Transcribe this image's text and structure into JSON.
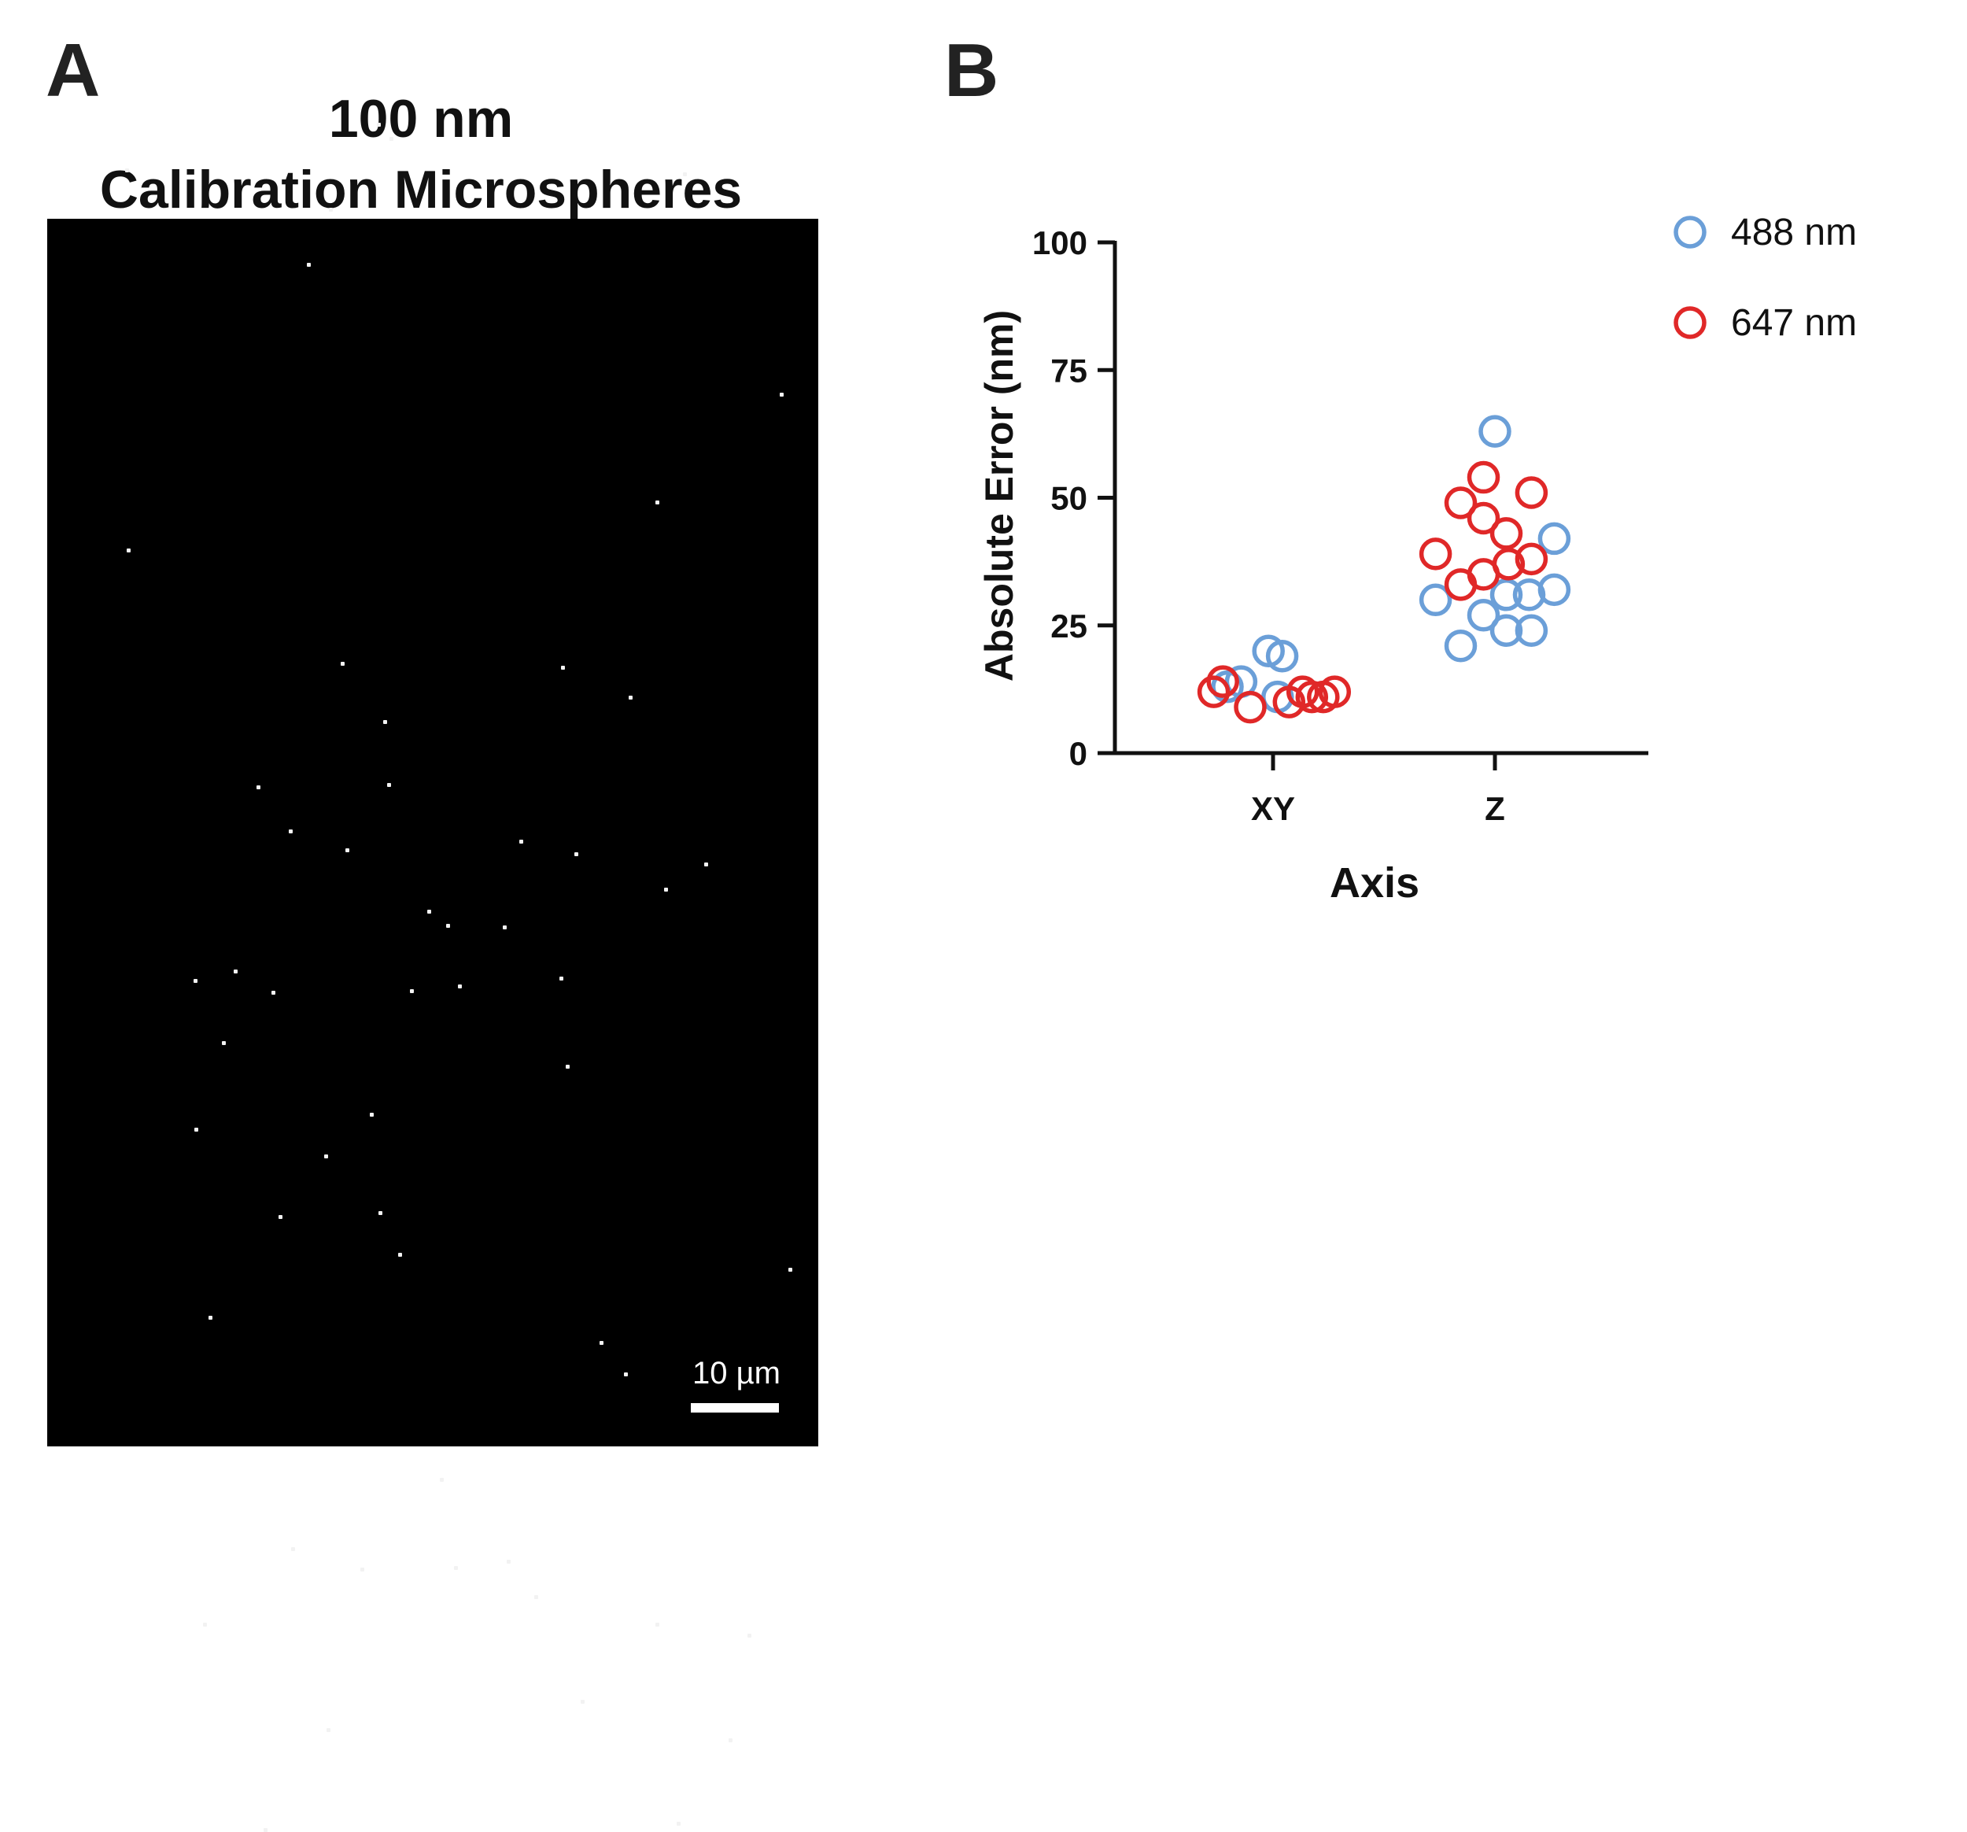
{
  "panel_a": {
    "letter": "A",
    "title_line1": "100 nm",
    "title_line2": "Calibration Microspheres",
    "scale_bar_label": "10 µm"
  },
  "panel_b": {
    "letter": "B"
  },
  "colors": {
    "series_488": "#6b9fd8",
    "series_647": "#e02828",
    "axis": "#111111",
    "image_background": "#000000"
  },
  "chart_data": {
    "type": "scatter",
    "title": "",
    "xlabel": "Axis",
    "ylabel": "Absolute  Error (nm)",
    "categories": [
      "XY",
      "Z"
    ],
    "ylim": [
      0,
      100
    ],
    "yticks": [
      0,
      25,
      50,
      75,
      100
    ],
    "legend_position": "top-right",
    "series": [
      {
        "name": "488 nm",
        "color": "#6b9fd8",
        "points": [
          {
            "category": "XY",
            "offset": -0.02,
            "value": 20
          },
          {
            "category": "XY",
            "offset": 0.04,
            "value": 19
          },
          {
            "category": "XY",
            "offset": -0.14,
            "value": 14
          },
          {
            "category": "XY",
            "offset": -0.2,
            "value": 13
          },
          {
            "category": "XY",
            "offset": 0.02,
            "value": 11
          },
          {
            "category": "Z",
            "offset": 0.0,
            "value": 63
          },
          {
            "category": "Z",
            "offset": 0.26,
            "value": 42
          },
          {
            "category": "Z",
            "offset": 0.26,
            "value": 32
          },
          {
            "category": "Z",
            "offset": 0.15,
            "value": 31
          },
          {
            "category": "Z",
            "offset": 0.05,
            "value": 31
          },
          {
            "category": "Z",
            "offset": -0.26,
            "value": 30
          },
          {
            "category": "Z",
            "offset": -0.05,
            "value": 27
          },
          {
            "category": "Z",
            "offset": 0.05,
            "value": 24
          },
          {
            "category": "Z",
            "offset": 0.16,
            "value": 24
          },
          {
            "category": "Z",
            "offset": -0.15,
            "value": 21
          }
        ]
      },
      {
        "name": "647 nm",
        "color": "#e02828",
        "points": [
          {
            "category": "XY",
            "offset": -0.22,
            "value": 14
          },
          {
            "category": "XY",
            "offset": -0.26,
            "value": 12
          },
          {
            "category": "XY",
            "offset": -0.1,
            "value": 9
          },
          {
            "category": "XY",
            "offset": 0.07,
            "value": 10
          },
          {
            "category": "XY",
            "offset": 0.13,
            "value": 12
          },
          {
            "category": "XY",
            "offset": 0.17,
            "value": 11
          },
          {
            "category": "XY",
            "offset": 0.22,
            "value": 11
          },
          {
            "category": "XY",
            "offset": 0.27,
            "value": 12
          },
          {
            "category": "Z",
            "offset": -0.05,
            "value": 54
          },
          {
            "category": "Z",
            "offset": 0.16,
            "value": 51
          },
          {
            "category": "Z",
            "offset": -0.15,
            "value": 49
          },
          {
            "category": "Z",
            "offset": -0.05,
            "value": 46
          },
          {
            "category": "Z",
            "offset": 0.05,
            "value": 43
          },
          {
            "category": "Z",
            "offset": -0.26,
            "value": 39
          },
          {
            "category": "Z",
            "offset": 0.16,
            "value": 38
          },
          {
            "category": "Z",
            "offset": 0.06,
            "value": 37
          },
          {
            "category": "Z",
            "offset": -0.05,
            "value": 35
          },
          {
            "category": "Z",
            "offset": -0.15,
            "value": 33
          }
        ]
      }
    ]
  }
}
